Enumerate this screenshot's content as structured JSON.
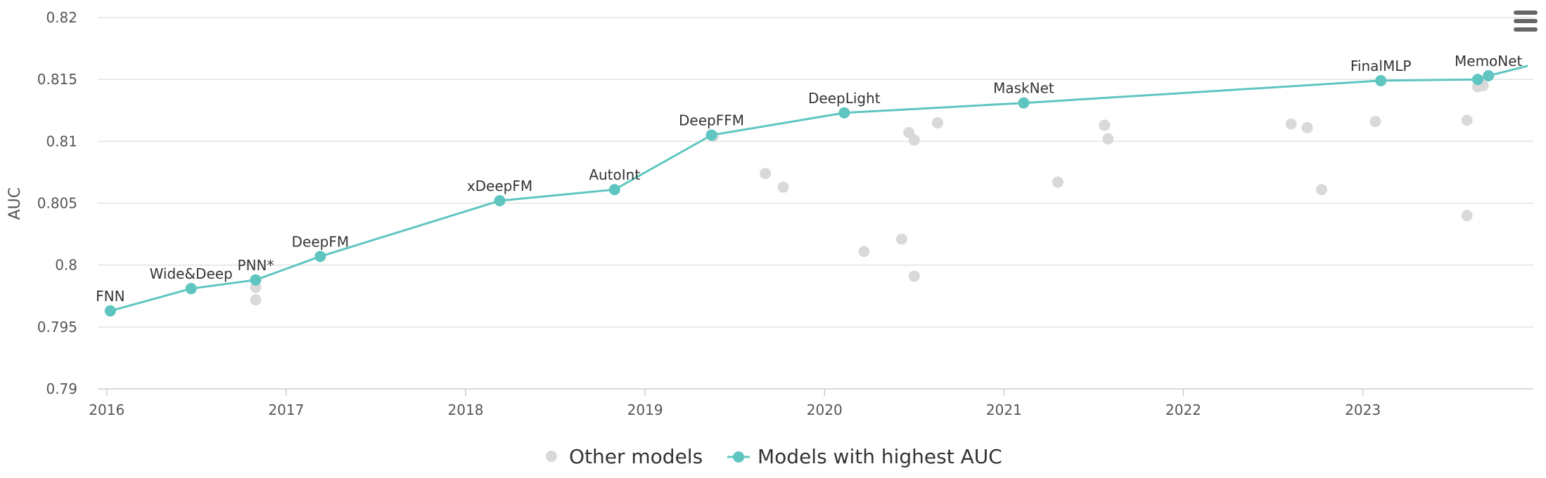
{
  "chart_data": {
    "type": "scatter",
    "title": "",
    "xlabel": "",
    "ylabel": "AUC",
    "xlim": [
      2015.95,
      2023.95
    ],
    "ylim": [
      0.79,
      0.82
    ],
    "x_ticks": [
      "2016",
      "2017",
      "2018",
      "2019",
      "2020",
      "2021",
      "2022",
      "2023"
    ],
    "y_ticks": [
      "0.79",
      "0.795",
      "0.8",
      "0.805",
      "0.81",
      "0.815",
      "0.82"
    ],
    "grid": true,
    "legend_position": "bottom-center",
    "colors": {
      "other": "#d9d9d9",
      "best": "#5fc5c0"
    },
    "menu_icon": "hamburger-menu-icon",
    "series": [
      {
        "name": "Other models",
        "points": [
          [
            2016.83,
            0.7982
          ],
          [
            2016.83,
            0.7972
          ],
          [
            2019.38,
            0.8104
          ],
          [
            2019.67,
            0.8074
          ],
          [
            2019.77,
            0.8063
          ],
          [
            2020.22,
            0.8011
          ],
          [
            2020.43,
            0.8021
          ],
          [
            2020.47,
            0.8107
          ],
          [
            2020.5,
            0.8101
          ],
          [
            2020.5,
            0.7991
          ],
          [
            2020.63,
            0.8115
          ],
          [
            2021.3,
            0.8067
          ],
          [
            2021.56,
            0.8113
          ],
          [
            2021.58,
            0.8102
          ],
          [
            2022.6,
            0.8114
          ],
          [
            2022.69,
            0.8111
          ],
          [
            2022.77,
            0.8061
          ],
          [
            2023.07,
            0.8116
          ],
          [
            2023.58,
            0.8117
          ],
          [
            2023.58,
            0.804
          ],
          [
            2023.64,
            0.8144
          ],
          [
            2023.67,
            0.8145
          ]
        ]
      },
      {
        "name": "Models with highest AUC",
        "points": [
          {
            "x": 2016.02,
            "y": 0.7963,
            "label": "FNN"
          },
          {
            "x": 2016.47,
            "y": 0.7981,
            "label": "Wide&Deep"
          },
          {
            "x": 2016.83,
            "y": 0.7988,
            "label": "PNN*"
          },
          {
            "x": 2017.19,
            "y": 0.8007,
            "label": "DeepFM"
          },
          {
            "x": 2018.19,
            "y": 0.8052,
            "label": "xDeepFM"
          },
          {
            "x": 2018.83,
            "y": 0.8061,
            "label": "AutoInt"
          },
          {
            "x": 2019.37,
            "y": 0.8105,
            "label": "DeepFFM"
          },
          {
            "x": 2020.11,
            "y": 0.8123,
            "label": "DeepLight"
          },
          {
            "x": 2021.11,
            "y": 0.8131,
            "label": "MaskNet"
          },
          {
            "x": 2023.1,
            "y": 0.8149,
            "label": "FinalMLP"
          },
          {
            "x": 2023.64,
            "y": 0.815,
            "label": ""
          },
          {
            "x": 2023.7,
            "y": 0.8153,
            "label": "MemoNet"
          }
        ],
        "tail": {
          "x": 2023.92,
          "y": 0.8161
        }
      }
    ]
  }
}
